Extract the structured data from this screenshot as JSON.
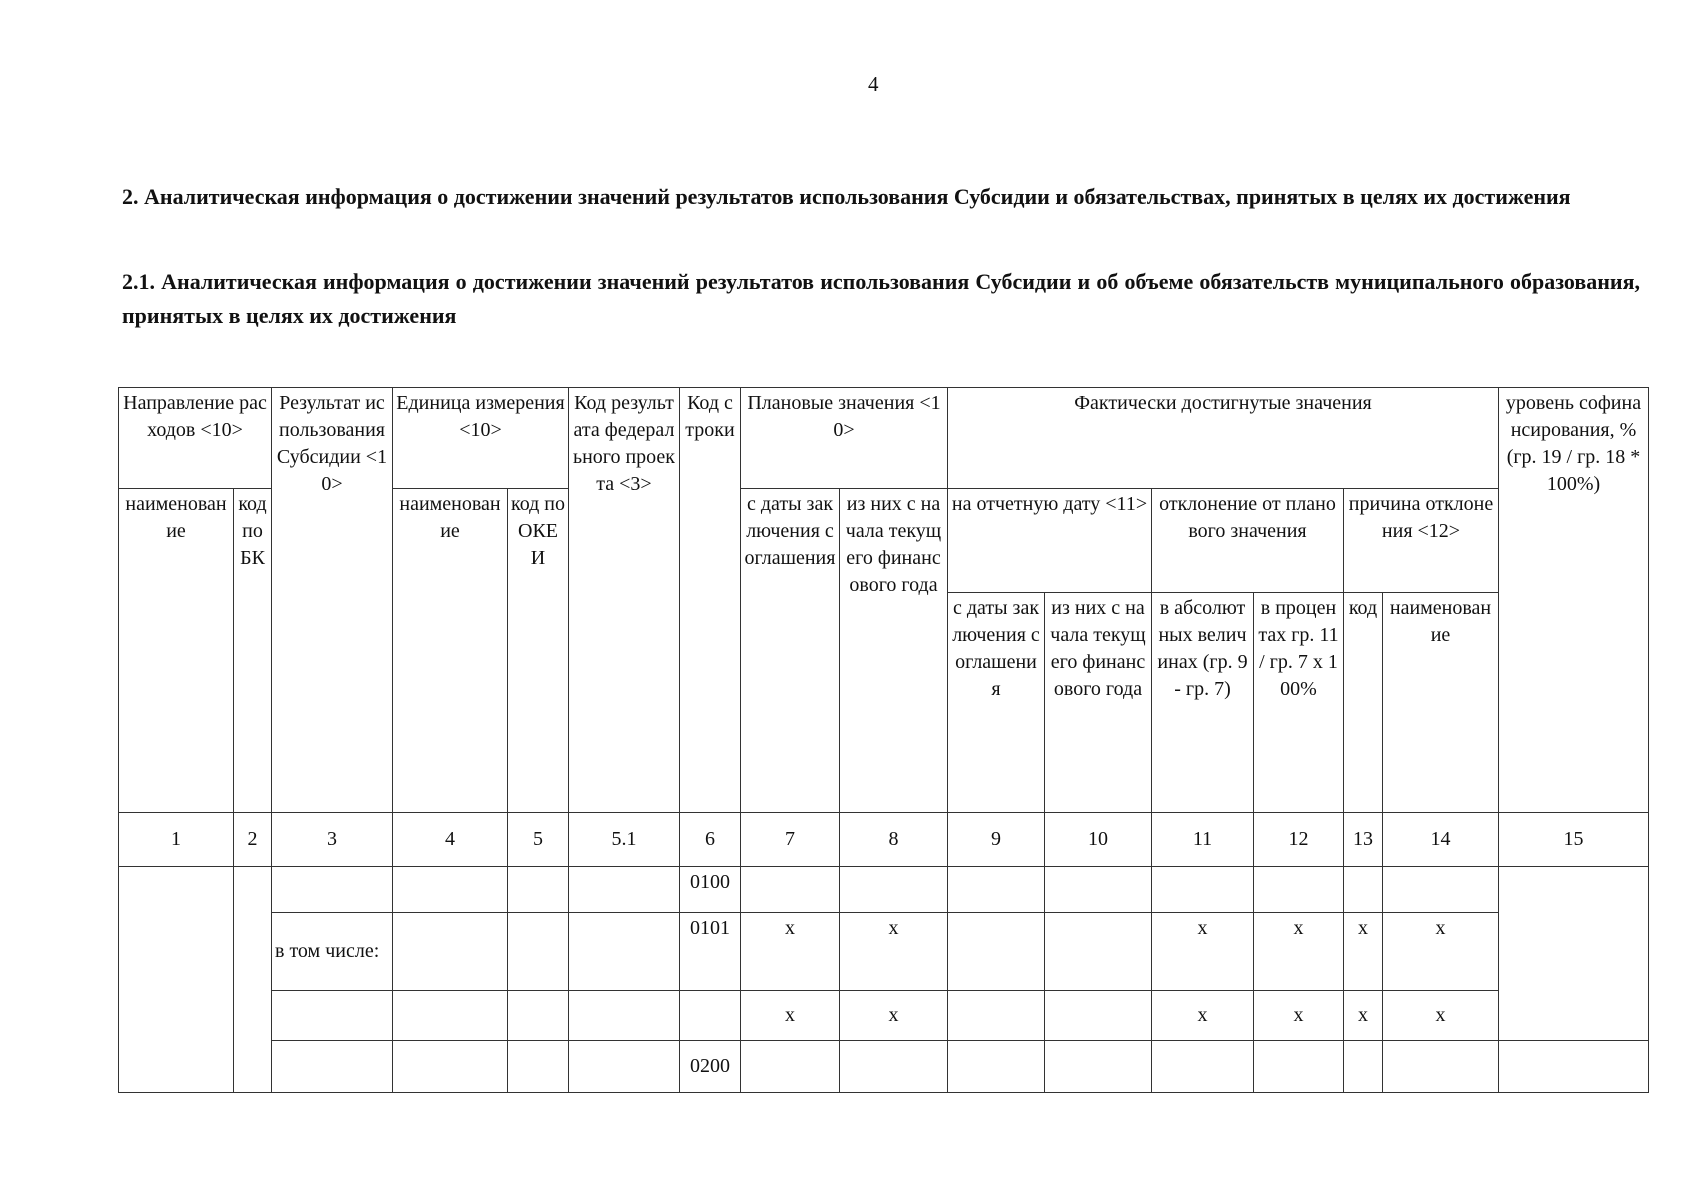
{
  "page_number": "4",
  "heading_1": "2. Аналитическая информация о достижении значений результатов использования Субсидии и обязательствах, принятых в целях их достижения",
  "heading_2": "2.1. Аналитическая информация о достижении значений результатов использования Субсидии и об объеме обязательств муниципального образования, принятых в целях их достижения",
  "table": {
    "header": {
      "direction": "Направление расходов <10>",
      "result": "Результат использования Субсидии <10>",
      "unit": "Единица измерения <10>",
      "fed_code": "Код результата федерального проекта <3>",
      "row_code": "Код строки",
      "planned": "Плановые значения <10>",
      "actual": "Фактически достигнутые значения",
      "cofinancing": "уровень софинансирования, % (гр. 19 / гр. 18 * 100%)",
      "dir_name": "наименование",
      "dir_code": "код по БК",
      "unit_name": "наименование",
      "unit_code": "код по ОКЕИ",
      "plan_from_date": "с даты заключения соглашения",
      "plan_from_year": "из них с начала текущего финансового года",
      "on_date": "на отчетную дату <11>",
      "deviation": "отклонение от планового значения",
      "reason": "причина отклонения <12>",
      "act_from_date": "с даты заключения соглашения",
      "act_from_year": "из них с начала текущего финансового года",
      "dev_abs": "в абсолютных величинах (гр. 9 - гр. 7)",
      "dev_pct": "в процентах гр. 11 / гр. 7 х 100%",
      "reason_code": "код",
      "reason_name": "наименование"
    },
    "column_numbers": [
      "1",
      "2",
      "3",
      "4",
      "5",
      "5.1",
      "6",
      "7",
      "8",
      "9",
      "10",
      "11",
      "12",
      "13",
      "14",
      "15"
    ],
    "rows": [
      {
        "result": "",
        "row_code": "0100",
        "c7": "",
        "c8": "",
        "c11": "",
        "c12": "",
        "c13": "",
        "c14": ""
      },
      {
        "result": "в том числе:",
        "row_code": "0101",
        "c7": "x",
        "c8": "x",
        "c11": "x",
        "c12": "x",
        "c13": "x",
        "c14": "x"
      },
      {
        "result": "",
        "row_code": "",
        "c7": "x",
        "c8": "x",
        "c11": "x",
        "c12": "x",
        "c13": "x",
        "c14": "x"
      },
      {
        "result": "",
        "row_code": "0200",
        "c7": "",
        "c8": "",
        "c11": "",
        "c12": "",
        "c13": "",
        "c14": ""
      }
    ]
  }
}
